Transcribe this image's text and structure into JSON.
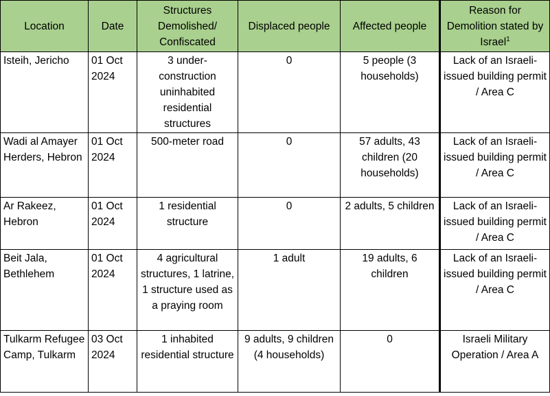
{
  "columns": {
    "location": "Location",
    "date": "Date",
    "structures": "Structures Demolished/ Confiscated",
    "displaced": "Displaced people",
    "affected": "Affected people",
    "reason": "Reason for Demolition stated by Israel",
    "reason_footnote": "1"
  },
  "rows": [
    {
      "location": "Isteih, Jericho",
      "date": "01 Oct 2024",
      "structures": "3 under-construction uninhabited residential structures",
      "displaced": "0",
      "affected": "5 people (3 households)",
      "reason": "Lack of an Israeli-issued building permit / Area C"
    },
    {
      "location": "Wadi al Amayer Herders, Hebron",
      "date": "01 Oct 2024",
      "structures": "500-meter road",
      "displaced": "0",
      "affected": "57 adults, 43 children (20 households)",
      "reason": "Lack of an Israeli-issued building permit / Area C"
    },
    {
      "location": "Ar Rakeez, Hebron",
      "date": "01 Oct 2024",
      "structures": "1 residential structure",
      "displaced": "0",
      "affected": "2 adults, 5 children",
      "reason": "Lack of an Israeli-issued building permit / Area C"
    },
    {
      "location": "Beit Jala, Bethlehem",
      "date": "01 Oct 2024",
      "structures": "4 agricultural structures, 1 latrine, 1 structure used as a praying room",
      "displaced": "1 adult",
      "affected": "19 adults, 6 children",
      "reason": "Lack of an Israeli-issued building permit / Area C"
    },
    {
      "location": "Tulkarm Refugee Camp, Tulkarm",
      "date": "03 Oct 2024",
      "structures": "1 inhabited residential structure",
      "displaced": "9 adults, 9 children (4 households)",
      "affected": "0",
      "reason": "Israeli Military Operation / Area A"
    }
  ]
}
